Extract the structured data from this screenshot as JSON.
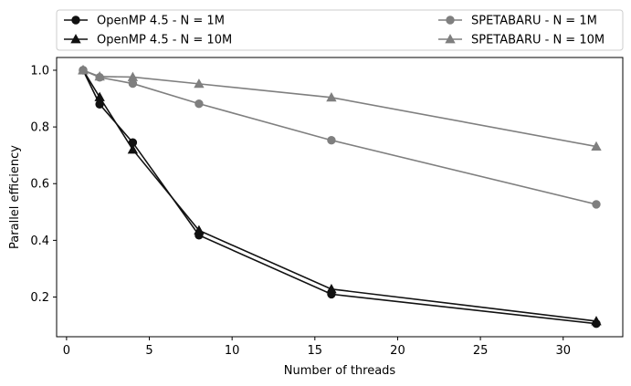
{
  "chart_data": {
    "type": "line",
    "xlabel": "Number of threads",
    "ylabel": "Parallel efficiency",
    "xlim": [
      -0.6,
      33.6
    ],
    "ylim": [
      0.06,
      1.045
    ],
    "xticks": [
      0,
      5,
      10,
      15,
      20,
      25,
      30
    ],
    "yticks": [
      0.2,
      0.4,
      0.6,
      0.8,
      1.0
    ],
    "xtick_labels": [
      "0",
      "5",
      "10",
      "15",
      "20",
      "25",
      "30"
    ],
    "ytick_labels": [
      "0.2",
      "0.4",
      "0.6",
      "0.8",
      "1.0"
    ],
    "grid": false,
    "legend_position": "top, above plot, two columns",
    "series": [
      {
        "name": "OpenMP 4.5 - N = 1M",
        "color": "#111111",
        "marker": "circle",
        "x": [
          1,
          2,
          4,
          8,
          16,
          32
        ],
        "y": [
          1.0,
          0.88,
          0.745,
          0.418,
          0.21,
          0.106
        ]
      },
      {
        "name": "OpenMP 4.5 - N = 10M",
        "color": "#111111",
        "marker": "triangle",
        "x": [
          1,
          2,
          4,
          8,
          16,
          32
        ],
        "y": [
          1.0,
          0.905,
          0.72,
          0.435,
          0.228,
          0.115
        ]
      },
      {
        "name": "SPETABARU - N = 1M",
        "color": "#7f7f7f",
        "marker": "circle",
        "x": [
          1,
          2,
          4,
          8,
          16,
          32
        ],
        "y": [
          1.0,
          0.975,
          0.953,
          0.882,
          0.753,
          0.527
        ]
      },
      {
        "name": "SPETABARU - N = 10M",
        "color": "#7f7f7f",
        "marker": "triangle",
        "x": [
          1,
          2,
          4,
          8,
          16,
          32
        ],
        "y": [
          1.0,
          0.978,
          0.976,
          0.952,
          0.904,
          0.731
        ]
      }
    ]
  }
}
